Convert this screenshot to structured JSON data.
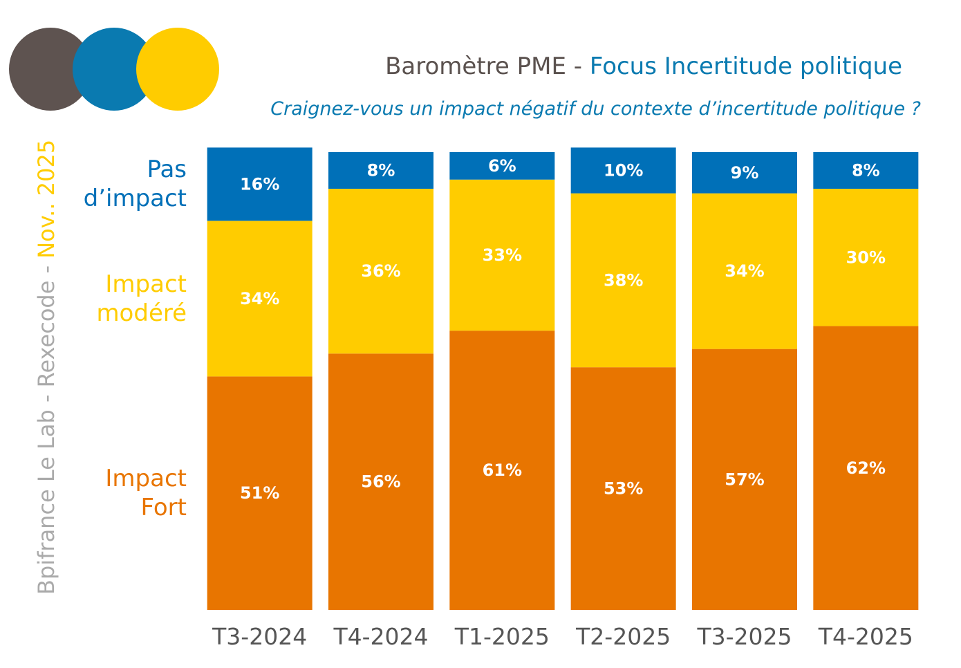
{
  "chart_data": {
    "type": "stacked_bar",
    "title": "Baromètre PME -",
    "title_focus": "Focus Incertitude politique",
    "subtitle": "Craignez-vous un impact négatif du contexte d’incertitude politique ?",
    "source": "Bpifrance Le Lab - Rexecode -",
    "date": "Nov.. 2025",
    "categories": [
      "T3-2024",
      "T4-2024",
      "T1-2025",
      "T2-2025",
      "T3-2025",
      "T4-2025"
    ],
    "ylim": [
      0,
      100
    ],
    "series": [
      {
        "name": "Impact Fort",
        "color": "#e87500",
        "values": [
          51,
          56,
          61,
          53,
          57,
          62
        ],
        "value_labels": [
          "51%",
          "56%",
          "61%",
          "53%",
          "57%",
          "62%"
        ]
      },
      {
        "name": "Impact modéré",
        "color": "#ffcc00",
        "values": [
          34,
          36,
          33,
          38,
          34,
          30
        ],
        "value_labels": [
          "34%",
          "36%",
          "33%",
          "38%",
          "34%",
          "30%"
        ]
      },
      {
        "name": "Pas d’impact",
        "color": "#0070b8",
        "values": [
          16,
          8,
          6,
          10,
          9,
          8
        ],
        "value_labels": [
          "16%",
          "8%",
          "6%",
          "10%",
          "9%",
          "8%"
        ]
      }
    ]
  }
}
